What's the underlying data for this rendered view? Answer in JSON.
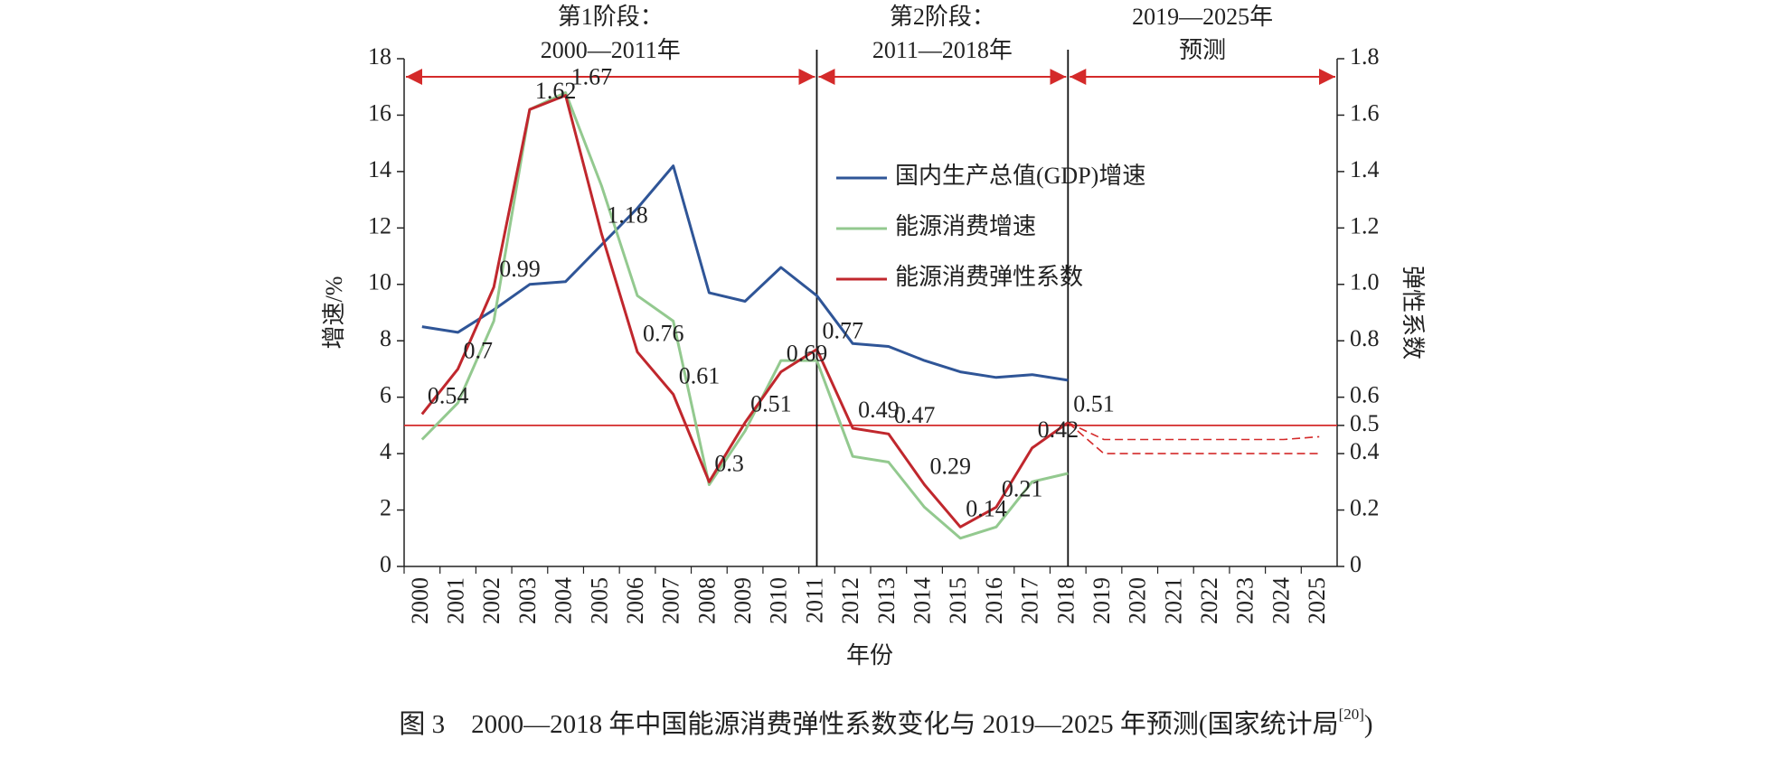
{
  "chart_data": {
    "type": "line",
    "title_parts": [
      "图 3　2000—2018 年中国能源消费弹性系数变化与 2019—2025 年预测(国家统计局",
      "[20]",
      ")"
    ],
    "xlabel": "年份",
    "ylabel": "增速/%",
    "y2label": "弹性系数",
    "categories": [
      "2000",
      "2001",
      "2002",
      "2003",
      "2004",
      "2005",
      "2006",
      "2007",
      "2008",
      "2009",
      "2010",
      "2011",
      "2012",
      "2013",
      "2014",
      "2015",
      "2016",
      "2017",
      "2018",
      "2019",
      "2020",
      "2021",
      "2022",
      "2023",
      "2024",
      "2025"
    ],
    "ylim": [
      0,
      18
    ],
    "yticks": [
      0,
      2,
      4,
      6,
      8,
      10,
      12,
      14,
      16,
      18
    ],
    "y2lim": [
      0,
      1.8
    ],
    "y2ticks": [
      0,
      0.2,
      0.4,
      0.5,
      0.6,
      0.8,
      {
        "value": 1,
        "label": "1.0"
      },
      1.2,
      1.4,
      1.6,
      1.8
    ],
    "hline": {
      "value": 0.5,
      "axis": "y2",
      "color": "#d42a2a"
    },
    "legend": "upper center",
    "phases": [
      {
        "lines": [
          "第1阶段：",
          "2000—2011年"
        ],
        "end": "2011"
      },
      {
        "lines": [
          "第2阶段：",
          "2011—2018年"
        ],
        "end": "2018"
      },
      {
        "lines": [
          "2019—2025年",
          "预测"
        ],
        "end": "2025"
      }
    ],
    "arrow_color": "#d42a2a",
    "series": [
      {
        "name": "国内生产总值(GDP)增速",
        "color": "#2f5597",
        "values": [
          8.5,
          8.3,
          9.1,
          10.0,
          10.1,
          11.4,
          12.7,
          14.2,
          9.7,
          9.4,
          10.6,
          9.6,
          7.9,
          7.8,
          7.3,
          6.9,
          6.7,
          6.8,
          6.6,
          null,
          null,
          null,
          null,
          null,
          null,
          null
        ]
      },
      {
        "name": "能源消费增速",
        "color": "#93c98f",
        "values": [
          4.5,
          5.8,
          8.7,
          16.2,
          16.8,
          13.5,
          9.6,
          8.7,
          2.9,
          4.8,
          7.3,
          7.3,
          3.9,
          3.7,
          2.1,
          1.0,
          1.4,
          3.0,
          3.3,
          null,
          null,
          null,
          null,
          null,
          null,
          null
        ]
      },
      {
        "name": "能源消费弹性系数",
        "color": "#c0272d",
        "axis": "y2",
        "show_values": true,
        "values": [
          0.54,
          0.7,
          0.99,
          1.62,
          1.67,
          1.18,
          0.76,
          0.61,
          0.3,
          0.51,
          0.69,
          0.77,
          0.49,
          0.47,
          0.29,
          0.14,
          0.21,
          0.42,
          0.51,
          null,
          null,
          null,
          null,
          null,
          null,
          null
        ]
      },
      {
        "color": "#d42a2a",
        "axis": "y2",
        "dashed": true,
        "values": [
          null,
          null,
          null,
          null,
          null,
          null,
          null,
          null,
          null,
          null,
          null,
          null,
          null,
          null,
          null,
          null,
          null,
          null,
          0.51,
          0.45,
          0.45,
          0.45,
          0.45,
          0.45,
          0.45,
          0.46
        ]
      },
      {
        "color": "#d42a2a",
        "axis": "y2",
        "dashed": true,
        "values": [
          null,
          null,
          null,
          null,
          null,
          null,
          null,
          null,
          null,
          null,
          null,
          null,
          null,
          null,
          null,
          null,
          null,
          null,
          0.51,
          0.4,
          0.4,
          0.4,
          0.4,
          0.4,
          0.4,
          0.4
        ]
      }
    ]
  }
}
